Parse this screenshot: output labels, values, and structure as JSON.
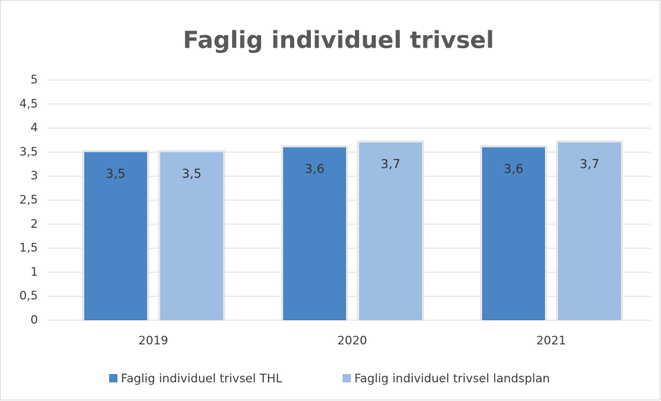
{
  "chart_data": {
    "type": "bar",
    "title": "Faglig individuel trivsel",
    "categories": [
      "2019",
      "2020",
      "2021"
    ],
    "series": [
      {
        "name": "Faglig individuel trivsel THL",
        "color": "#4a86c5",
        "values": [
          3.5,
          3.6,
          3.6
        ],
        "value_labels": [
          "3,5",
          "3,6",
          "3,6"
        ]
      },
      {
        "name": "Faglig individuel trivsel landsplan",
        "color": "#9dbde3",
        "values": [
          3.5,
          3.7,
          3.7
        ],
        "value_labels": [
          "3,5",
          "3,7",
          "3,7"
        ]
      }
    ],
    "ylim": [
      0,
      5
    ],
    "yticks": [
      0,
      {
        "value": 0.5,
        "label": "0,5"
      },
      1,
      {
        "value": 1.5,
        "label": "1,5"
      },
      2,
      {
        "value": 2.5,
        "label": "2,5"
      },
      3,
      {
        "value": 3.5,
        "label": "3,5"
      },
      4,
      {
        "value": 4.5,
        "label": "4,5"
      },
      5
    ],
    "grid": true,
    "legend": "bottom"
  }
}
